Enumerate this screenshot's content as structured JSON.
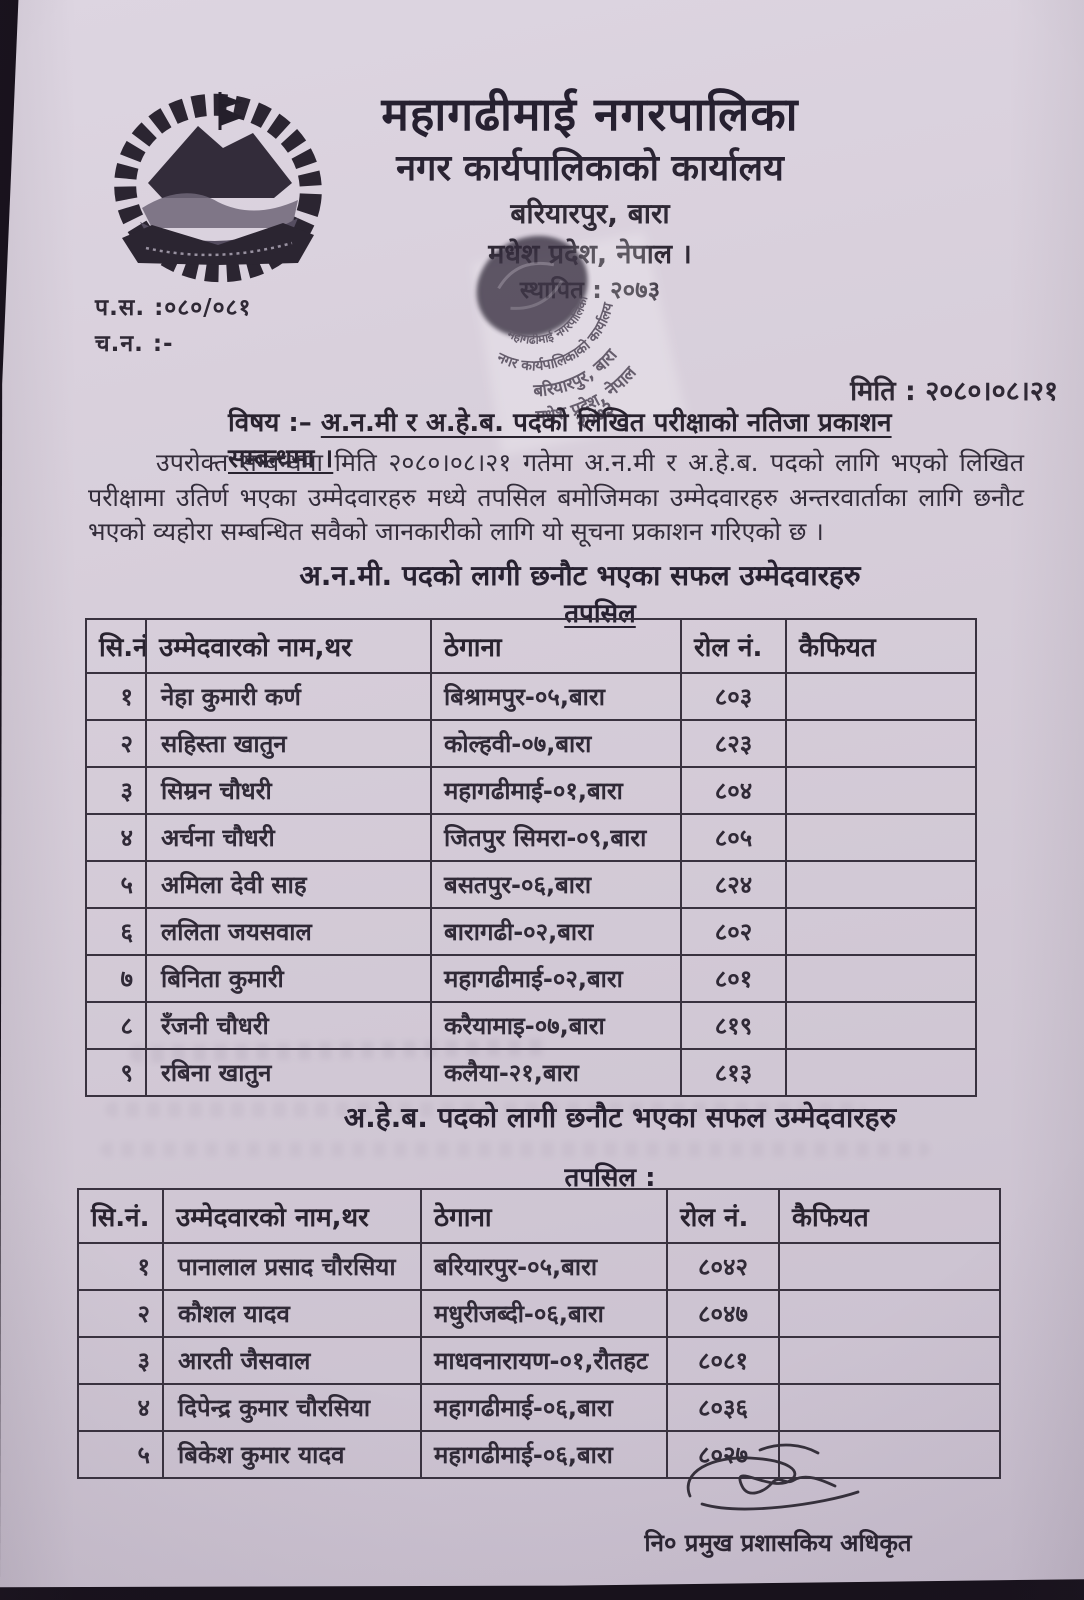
{
  "header": {
    "municipality": "महागढीमाई नगरपालिका",
    "office": "नगर कार्यपालिकाको कार्यालय",
    "address": "बरियारपुर, बारा",
    "province": "मधेश प्रदेश, नेपाल ।",
    "established": "स्थापित : २०७३"
  },
  "meta": {
    "ref_no": "प.स. :०८०/०८१",
    "dispatch_no": "च.न. :-",
    "date": "मिति : २०८०।०८।२१"
  },
  "subject": {
    "prefix": "विषय :– ",
    "text": "अ.न.मी र अ.हे.ब. पदको लिखित परीक्षाको नतिजा प्रकाशन सम्बन्धमा ।"
  },
  "body_paragraph": "उपरोक्त सम्बन्धमा मिति २०८०।०८।२१ गतेमा अ.न.मी र अ.हे.ब. पदको लागि भएको लिखित परीक्षामा उतिर्ण भएका  उम्मेदवारहरु मध्ये तपसिल बमोजिमका उम्मेदवारहरु अन्तरवार्ताका लागि छनौट भएको व्यहोरा सम्बन्धित सवैको जानकारीको लागि यो सूचना प्रकाशन गरिएको छ ।",
  "section1": {
    "title": "अ.न.मी. पदको लागी छनौट भएका सफल उम्मेदवारहरु",
    "subtitle": "तपसिल"
  },
  "table1": {
    "headers": [
      "सि.नं",
      "उम्मेदवारको नाम,थर",
      "ठेगाना",
      "रोल नं.",
      "कैफियत"
    ],
    "rows": [
      [
        "१",
        "नेहा कुमारी कर्ण",
        "बिश्रामपुर-०५,बारा",
        "८०३",
        ""
      ],
      [
        "२",
        "सहिस्ता खातुन",
        "कोल्हवी-०७,बारा",
        "८२३",
        ""
      ],
      [
        "३",
        "सिम्रन चौधरी",
        "महागढीमाई-०१,बारा",
        "८०४",
        ""
      ],
      [
        "४",
        "अर्चना चौधरी",
        "जितपुर सिमरा-०९,बारा",
        "८०५",
        ""
      ],
      [
        "५",
        "अमिला देवी साह",
        "बसतपुर-०६,बारा",
        "८२४",
        ""
      ],
      [
        "६",
        "ललिता जयसवाल",
        "बारागढी-०२,बारा",
        "८०२",
        ""
      ],
      [
        "७",
        "बिनिता कुमारी",
        "महागढीमाई-०२,बारा",
        "८०१",
        ""
      ],
      [
        "८",
        "रँजनी चौधरी",
        "करैयामाइ-०७,बारा",
        "८१९",
        ""
      ],
      [
        "९",
        "रबिना खातुन",
        "कलैया-२१,बारा",
        "८१३",
        ""
      ]
    ]
  },
  "section2": {
    "title": "अ.हे.ब. पदको लागी छनौट भएका सफल उम्मेदवारहरु",
    "subtitle": "तपसिल :"
  },
  "table2": {
    "headers": [
      "सि.नं.",
      "उम्मेदवारको नाम,थर",
      "ठेगाना",
      "रोल नं.",
      "कैफियत"
    ],
    "rows": [
      [
        "१",
        "पानालाल प्रसाद चौरसिया",
        "बरियारपुर-०५,बारा",
        "८०४२",
        ""
      ],
      [
        "२",
        "कौशल यादव",
        "मधुरीजब्दी-०६,बारा",
        "८०४७",
        ""
      ],
      [
        "३",
        "आरती जैसवाल",
        "माधवनारायण-०१,रौतहट",
        "८०८१",
        ""
      ],
      [
        "४",
        "दिपेन्द्र कुमार चौरसिया",
        "महागढीमाई-०६,बारा",
        "८०३६",
        ""
      ],
      [
        "५",
        "बिकेश कुमार यादव",
        "महागढीमाई-०६,बारा",
        "८०२७",
        ""
      ]
    ]
  },
  "signature": {
    "title": "नि० प्रमुख प्रशासकिय अधिकृत"
  },
  "stamp": {
    "line1": "महागढीमाई नगरपालिका",
    "line2": "नगर कार्यपालिकाको कार्यालय",
    "line3": "बरियारपुर, बारा",
    "line4": "मधेश प्रदेश, नेपाल",
    "year": "२०७३"
  },
  "colors": {
    "paper": "#d7ceda",
    "ink": "#2f2935",
    "stamp_ink": "#4b4252",
    "desk": "#17111b"
  }
}
